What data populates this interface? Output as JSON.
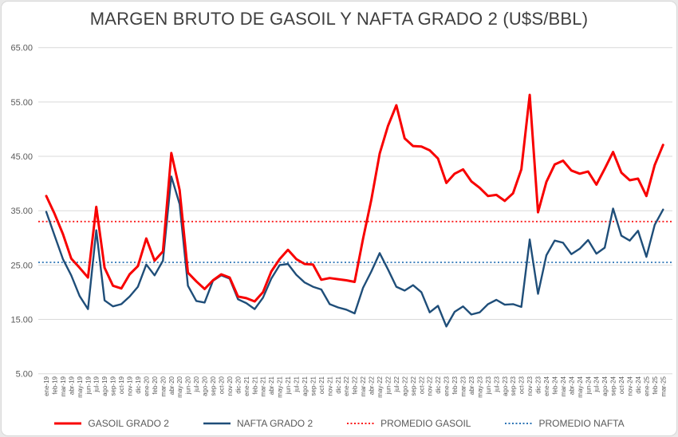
{
  "chart_data": {
    "type": "line",
    "title": "MARGEN BRUTO DE GASOIL Y NAFTA GRADO 2 (U$S/BBL)",
    "xlabel": "",
    "ylabel": "",
    "ylim": [
      5,
      65
    ],
    "grid": "horizontal",
    "legend_position": "bottom",
    "y_ticks": [
      {
        "value": 65,
        "label": "65.00"
      },
      {
        "value": 55,
        "label": "55.00"
      },
      {
        "value": 45,
        "label": "45.00"
      },
      {
        "value": 35,
        "label": "35.00"
      },
      {
        "value": 25,
        "label": "25.00"
      },
      {
        "value": 15,
        "label": "15.00"
      },
      {
        "value": 5,
        "label": "5.00"
      }
    ],
    "x_labels": [
      "ene-19",
      "feb-19",
      "mar-19",
      "abr-19",
      "may-19",
      "jun-19",
      "jul-19",
      "ago-19",
      "sep-19",
      "oct-19",
      "nov-19",
      "dic-19",
      "ene-20",
      "feb-20",
      "mar-20",
      "abr-20",
      "may-20",
      "jun-20",
      "jul-20",
      "ago-20",
      "sep-20",
      "oct-20",
      "nov-20",
      "dic-20",
      "ene-21",
      "feb-21",
      "mar-21",
      "abr-21",
      "may-21",
      "jun-21",
      "jul-21",
      "ago-21",
      "sep-21",
      "oct-21",
      "nov-21",
      "dic-21",
      "ene-22",
      "feb-22",
      "mar-22",
      "abr-22",
      "may-22",
      "jun-22",
      "jul-22",
      "ago-22",
      "sep-22",
      "oct-22",
      "nov-22",
      "dic-22",
      "ene-23",
      "feb-23",
      "mar-23",
      "abr-23",
      "may-23",
      "jun-23",
      "jul-23",
      "ago-23",
      "sep-23",
      "oct-23",
      "nov-23",
      "dic-23",
      "ene-24",
      "feb-24",
      "mar-24",
      "abr-24",
      "may-24",
      "jun-24",
      "jul-24",
      "ago-24",
      "sep-24",
      "oct-24",
      "nov-24",
      "dic-24",
      "ene-25",
      "feb-25",
      "mar-25"
    ],
    "series": [
      {
        "name": "GASOIL GRADO 2",
        "type": "line",
        "color": "#f80000",
        "stroke_width": 3,
        "values": [
          37.7,
          34.4,
          30.7,
          26.2,
          24.5,
          22.7,
          35.7,
          24.5,
          21.2,
          20.7,
          23.3,
          24.8,
          29.9,
          25.8,
          27.5,
          45.6,
          38.8,
          23.6,
          22.0,
          20.6,
          22.2,
          23.3,
          22.7,
          19.2,
          18.9,
          18.3,
          20.0,
          23.8,
          26.1,
          27.8,
          26.1,
          25.2,
          25.1,
          22.3,
          22.6,
          22.4,
          22.2,
          21.9,
          29.8,
          37.0,
          45.5,
          50.6,
          54.4,
          48.3,
          46.9,
          46.8,
          46.1,
          44.6,
          40.1,
          41.8,
          42.6,
          40.4,
          39.2,
          37.7,
          37.9,
          36.8,
          38.2,
          42.6,
          56.3,
          34.7,
          40.3,
          43.5,
          44.2,
          42.4,
          41.8,
          42.2,
          39.8,
          42.7,
          45.8,
          42.0,
          40.6,
          40.9,
          37.7,
          43.4,
          47.1
        ]
      },
      {
        "name": "NAFTA GRADO 2",
        "type": "line",
        "color": "#1f4e79",
        "stroke_width": 2.4,
        "values": [
          34.8,
          30.4,
          26.1,
          23.1,
          19.3,
          16.9,
          31.4,
          18.5,
          17.4,
          17.8,
          19.2,
          21.0,
          25.1,
          23.1,
          25.8,
          41.3,
          36.2,
          21.2,
          18.4,
          18.1,
          22.1,
          23.1,
          22.5,
          18.7,
          18.0,
          16.9,
          19.0,
          22.5,
          25.0,
          25.2,
          23.2,
          21.8,
          21.0,
          20.5,
          17.8,
          17.2,
          16.8,
          16.1,
          20.8,
          23.8,
          27.2,
          24.2,
          21.0,
          20.3,
          21.3,
          20.0,
          16.3,
          17.5,
          13.7,
          16.4,
          17.4,
          15.9,
          16.3,
          17.8,
          18.6,
          17.7,
          17.8,
          17.3,
          29.7,
          19.7,
          26.8,
          29.5,
          29.1,
          27.0,
          28.0,
          29.6,
          27.1,
          28.2,
          35.4,
          30.4,
          29.5,
          31.3,
          26.5,
          32.4,
          35.2
        ]
      },
      {
        "name": "PROMEDIO GASOIL",
        "type": "average-line",
        "color": "#fb1b1b",
        "value": 33.0
      },
      {
        "name": "PROMEDIO NAFTA",
        "type": "average-line",
        "color": "#2e75b6",
        "value": 25.5
      }
    ]
  },
  "colors": {
    "background": "#ffffff",
    "frame_border": "#d8d8d8",
    "grid": "#d9d9d9",
    "title_text": "#3f3f3f",
    "axis_text": "#595959"
  }
}
